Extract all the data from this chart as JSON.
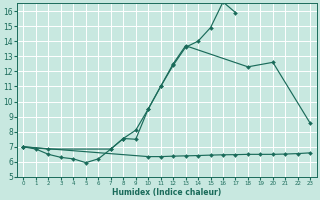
{
  "xlabel": "Humidex (Indice chaleur)",
  "bg_color": "#c8e8e0",
  "grid_color": "#ffffff",
  "line_color": "#1a6b5a",
  "xlim": [
    -0.5,
    23.5
  ],
  "ylim": [
    5,
    16.5
  ],
  "yticks": [
    5,
    6,
    7,
    8,
    9,
    10,
    11,
    12,
    13,
    14,
    15,
    16
  ],
  "xticks": [
    0,
    1,
    2,
    3,
    4,
    5,
    6,
    7,
    8,
    9,
    10,
    11,
    12,
    13,
    14,
    15,
    16,
    17,
    18,
    19,
    20,
    21,
    22,
    23
  ],
  "line1_x": [
    0,
    1,
    2,
    3,
    4,
    5,
    6,
    7,
    8,
    9,
    10,
    11,
    12,
    13,
    14,
    15,
    16,
    17
  ],
  "line1_y": [
    7.0,
    6.85,
    6.5,
    6.3,
    6.2,
    5.95,
    6.2,
    6.85,
    7.55,
    7.5,
    9.5,
    11.0,
    12.4,
    13.6,
    14.0,
    14.9,
    16.6,
    15.9
  ],
  "line2_x": [
    0,
    2,
    7,
    8,
    9,
    10,
    11,
    12,
    13,
    18,
    20,
    23
  ],
  "line2_y": [
    7.0,
    6.85,
    6.85,
    7.55,
    8.1,
    9.5,
    11.0,
    12.5,
    13.7,
    12.3,
    12.6,
    8.55
  ],
  "line3_x": [
    0,
    10,
    11,
    12,
    13,
    14,
    15,
    16,
    17,
    18,
    19,
    20,
    21,
    22,
    23
  ],
  "line3_y": [
    7.0,
    6.35,
    6.35,
    6.38,
    6.4,
    6.42,
    6.45,
    6.47,
    6.48,
    6.5,
    6.5,
    6.5,
    6.52,
    6.55,
    6.6
  ]
}
